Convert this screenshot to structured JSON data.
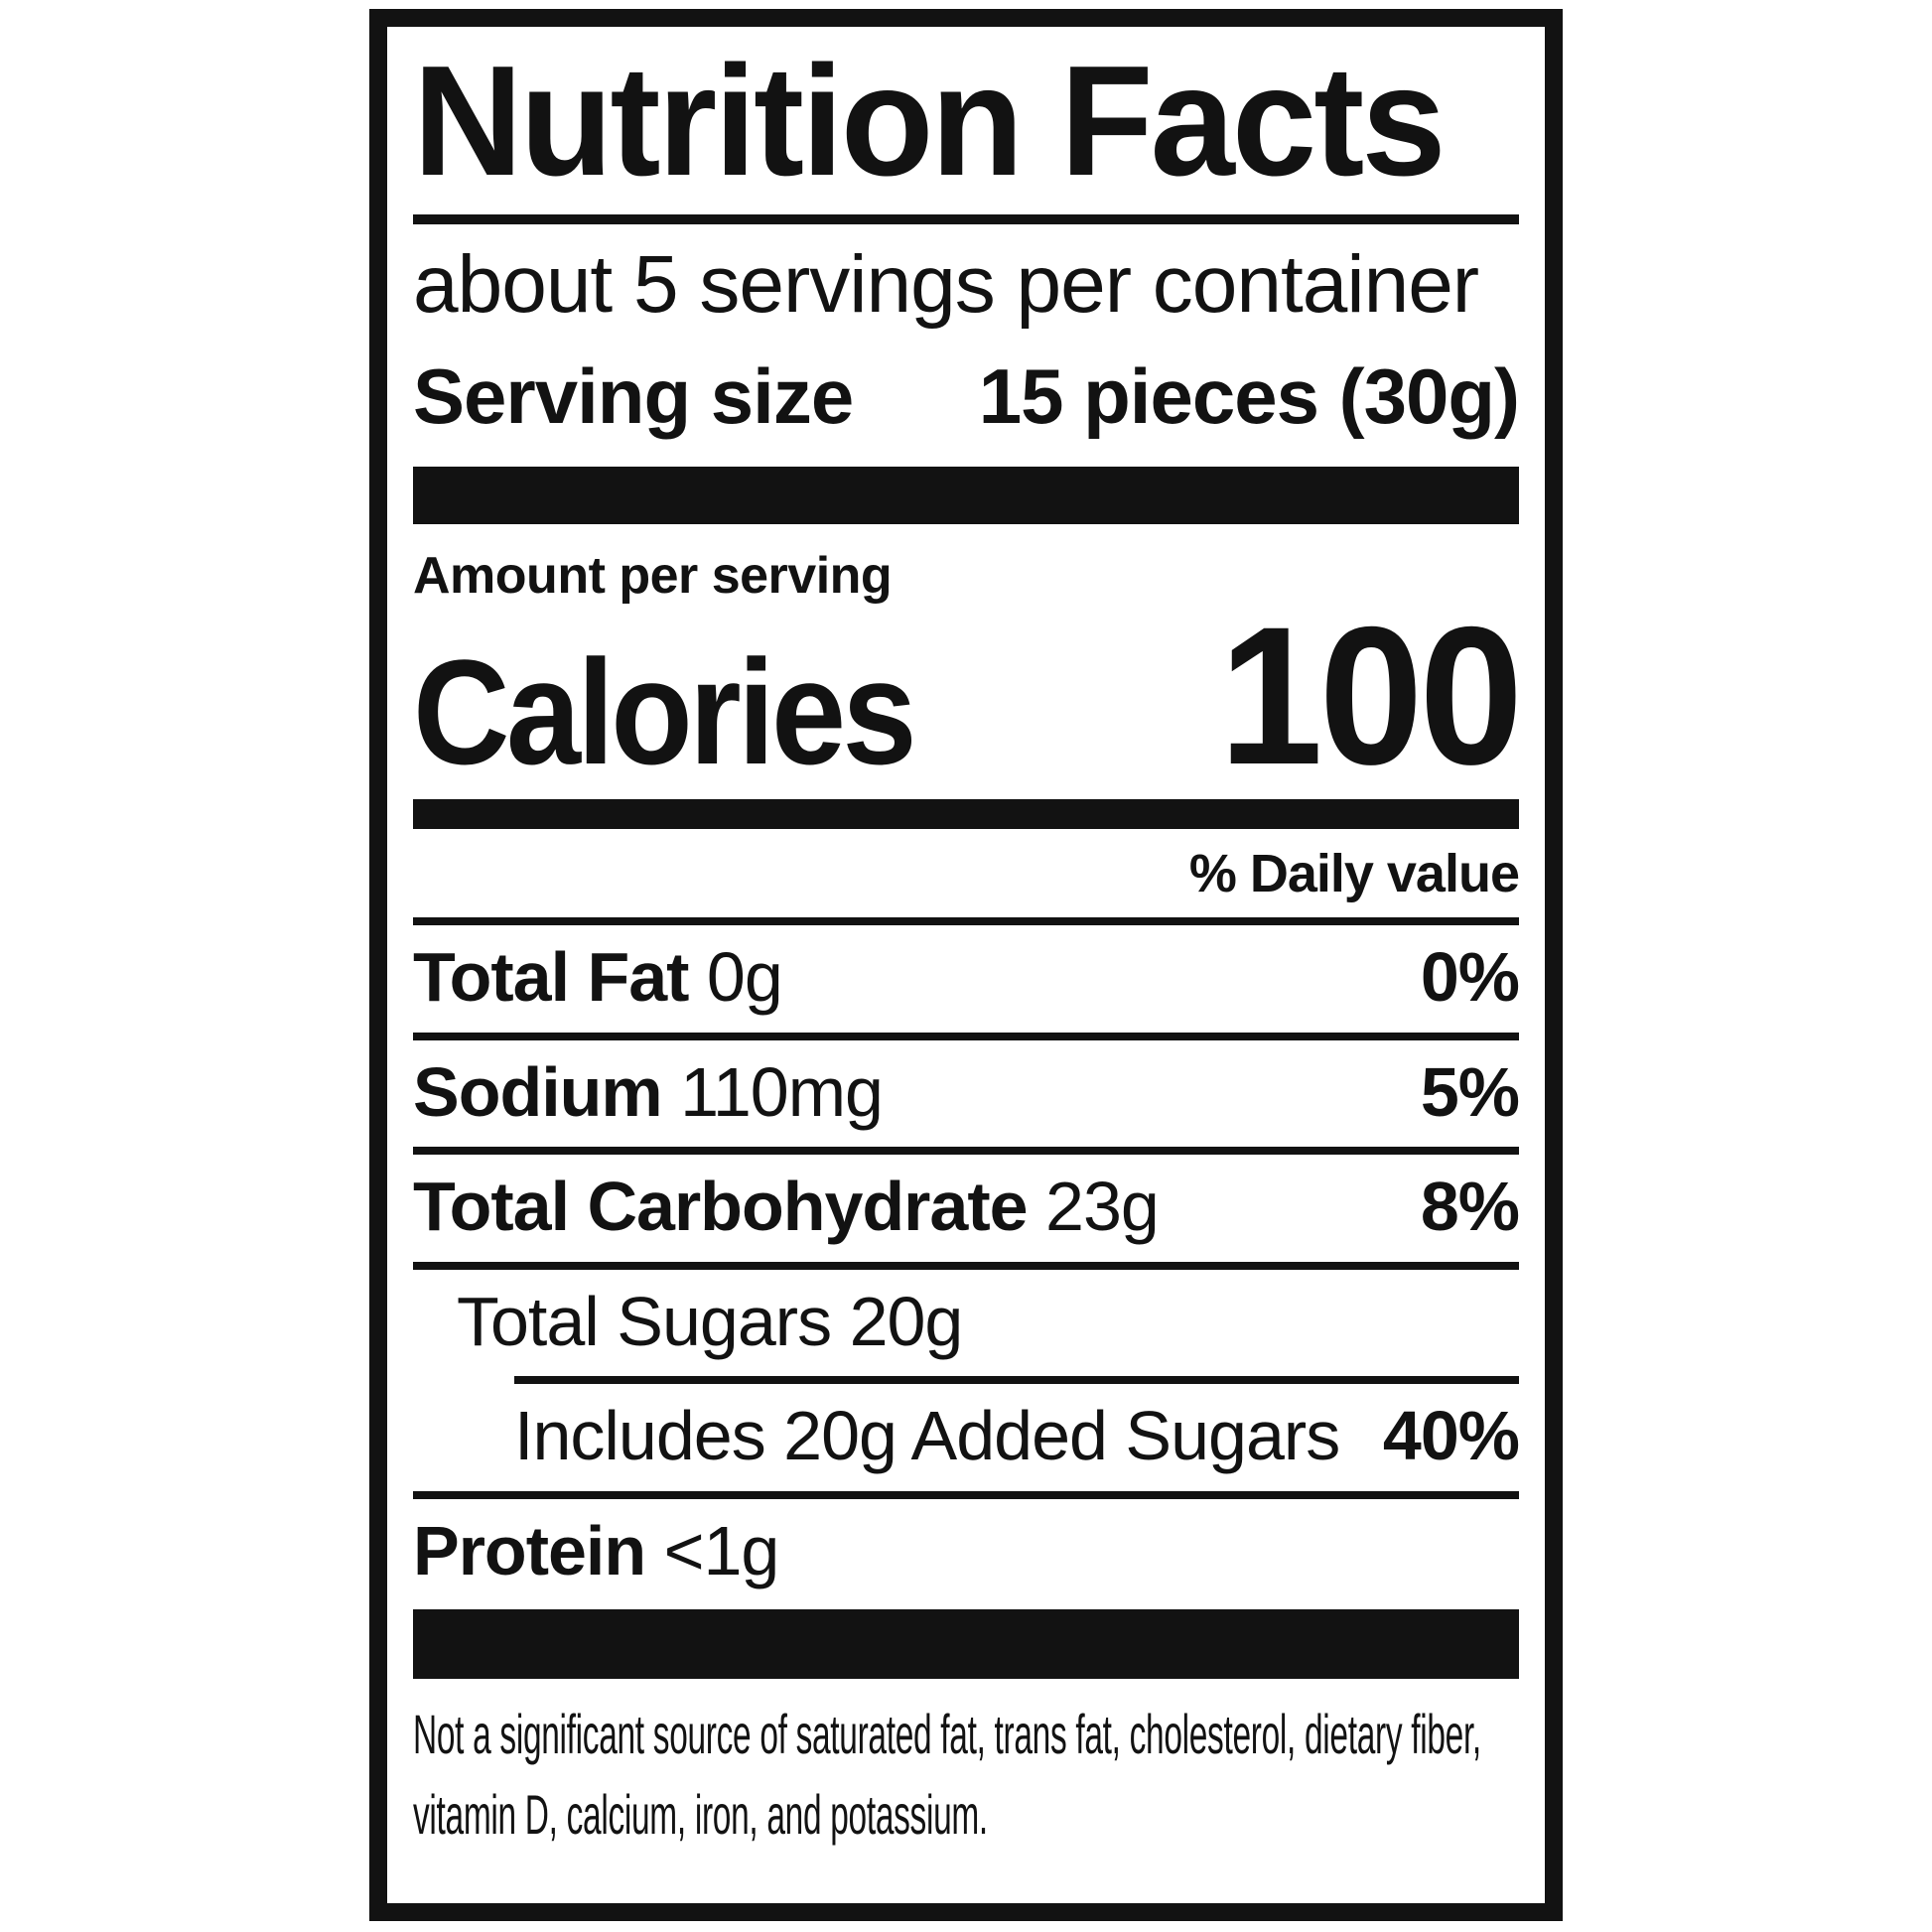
{
  "label": {
    "title": "Nutrition Facts",
    "servings_per_container": "about 5 servings per container",
    "serving_size": {
      "label": "Serving size",
      "value": "15 pieces (30g)"
    },
    "amount_per_serving": "Amount per serving",
    "calories": {
      "label": "Calories",
      "value": "100"
    },
    "daily_value_header": "% Daily value",
    "nutrients": [
      {
        "name": "Total Fat",
        "amount": "0g",
        "dv": "0%"
      },
      {
        "name": "Sodium",
        "amount": "110mg",
        "dv": "5%"
      },
      {
        "name": "Total Carbohydrate",
        "amount": "23g",
        "dv": "8%"
      },
      {
        "name": "Total Sugars",
        "amount": "20g",
        "dv": ""
      },
      {
        "name": "Includes 20g Added Sugars",
        "amount": "",
        "dv": "40%"
      },
      {
        "name": "Protein",
        "amount": "<1g",
        "dv": ""
      }
    ],
    "footnote": "Not a significant source of saturated fat, trans fat, cholesterol, dietary fiber, vitamin D, calcium, iron, and potassium.",
    "colors": {
      "ink": "#121212",
      "background": "#ffffff"
    }
  }
}
